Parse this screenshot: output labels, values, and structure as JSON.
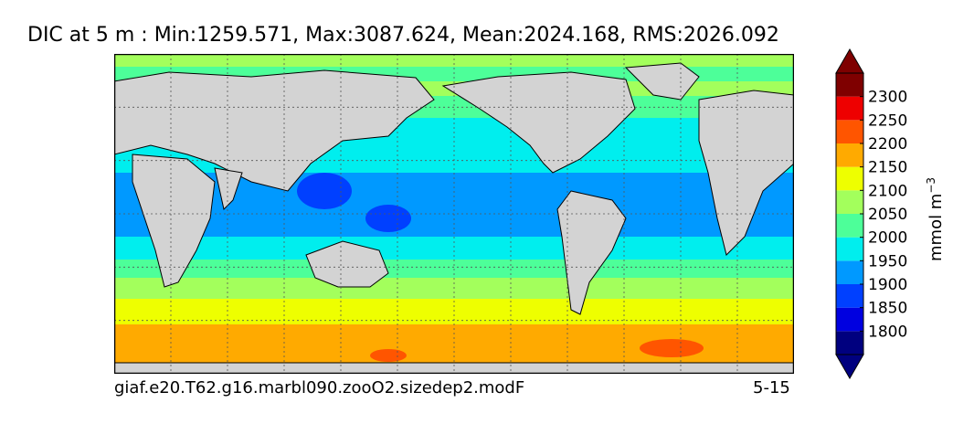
{
  "chart_data": {
    "type": "heatmap",
    "title": "DIC at 5 m : Min:1259.571, Max:3087.624, Mean:2024.168, RMS:2026.092",
    "variable": "DIC",
    "depth": "5 m",
    "stats": {
      "min": 1259.571,
      "max": 3087.624,
      "mean": 2024.168,
      "rms": 2026.092
    },
    "projection": "cylindrical",
    "grid": true,
    "land_color": "#d3d3d3",
    "colorbar": {
      "unit": "mmol m",
      "unit_exponent": "−3",
      "extend": "both",
      "ticks": [
        "1800",
        "1850",
        "1900",
        "1950",
        "2000",
        "2050",
        "2100",
        "2150",
        "2200",
        "2250",
        "2300"
      ],
      "levels": [
        {
          "upto": 1800,
          "color": "#00007f"
        },
        {
          "upto": 1850,
          "color": "#0000e0"
        },
        {
          "upto": 1900,
          "color": "#0040ff"
        },
        {
          "upto": 1950,
          "color": "#0099ff"
        },
        {
          "upto": 2000,
          "color": "#00eeee"
        },
        {
          "upto": 2050,
          "color": "#4dff99"
        },
        {
          "upto": 2100,
          "color": "#a3ff5c"
        },
        {
          "upto": 2150,
          "color": "#eeff00"
        },
        {
          "upto": 2200,
          "color": "#ffaa00"
        },
        {
          "upto": 2250,
          "color": "#ff5500"
        },
        {
          "upto": 2300,
          "color": "#ee0000"
        },
        {
          "upto": 2350,
          "color": "#7f0000"
        }
      ]
    },
    "case_name": "giaf.e20.T62.g16.marbl090.zooO2.sizedep2.modF",
    "period": "5-15"
  }
}
